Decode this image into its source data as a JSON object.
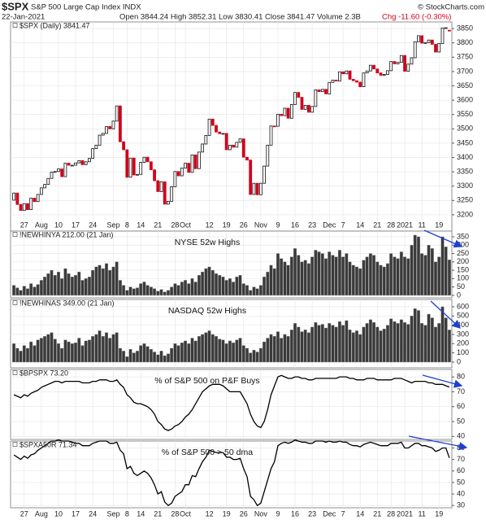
{
  "header": {
    "symbol": "$SPX",
    "name": "S&P 500 Large Cap Index INDX",
    "date": "22-Jan-2021",
    "quote": "Open 3844.24 High 3852.31 Low 3830.41 Close 3841.47 Volume 2.3B",
    "change": "Chg -11.60 (-0.30%)",
    "credit": "© StockCharts.com"
  },
  "chart_data": [
    {
      "type": "candlestick",
      "legend": "$SPX (Daily) 3841.47",
      "up_color": "#111111",
      "down_color": "#d0021b",
      "grid": true,
      "x": [
        "Jul 22",
        "Jul 23",
        "Jul 24",
        "Jul 27",
        "Jul 28",
        "Jul 29",
        "Jul 30",
        "Jul 31",
        "Aug 3",
        "Aug 4",
        "Aug 5",
        "Aug 6",
        "Aug 7",
        "Aug 10",
        "Aug 11",
        "Aug 12",
        "Aug 13",
        "Aug 14",
        "Aug 17",
        "Aug 18",
        "Aug 19",
        "Aug 20",
        "Aug 21",
        "Aug 24",
        "Aug 25",
        "Aug 26",
        "Aug 27",
        "Aug 28",
        "Aug 31",
        "Sep 1",
        "Sep 2",
        "Sep 3",
        "Sep 4",
        "Sep 8",
        "Sep 9",
        "Sep 10",
        "Sep 11",
        "Sep 14",
        "Sep 15",
        "Sep 16",
        "Sep 17",
        "Sep 18",
        "Sep 21",
        "Sep 22",
        "Sep 23",
        "Sep 24",
        "Sep 25",
        "Sep 28",
        "Sep 29",
        "Sep 30",
        "Oct 1",
        "Oct 2",
        "Oct 5",
        "Oct 6",
        "Oct 7",
        "Oct 8",
        "Oct 9",
        "Oct 12",
        "Oct 13",
        "Oct 14",
        "Oct 15",
        "Oct 16",
        "Oct 19",
        "Oct 20",
        "Oct 21",
        "Oct 22",
        "Oct 23",
        "Oct 26",
        "Oct 27",
        "Oct 28",
        "Oct 29",
        "Oct 30",
        "Nov 2",
        "Nov 3",
        "Nov 4",
        "Nov 5",
        "Nov 6",
        "Nov 9",
        "Nov 10",
        "Nov 11",
        "Nov 12",
        "Nov 13",
        "Nov 16",
        "Nov 17",
        "Nov 18",
        "Nov 19",
        "Nov 20",
        "Nov 23",
        "Nov 24",
        "Nov 25",
        "Nov 27",
        "Nov 30",
        "Dec 1",
        "Dec 2",
        "Dec 3",
        "Dec 4",
        "Dec 7",
        "Dec 8",
        "Dec 9",
        "Dec 10",
        "Dec 11",
        "Dec 14",
        "Dec 15",
        "Dec 16",
        "Dec 17",
        "Dec 18",
        "Dec 21",
        "Dec 22",
        "Dec 23",
        "Dec 24",
        "Dec 28",
        "Dec 29",
        "Dec 30",
        "Dec 31",
        "Jan 4",
        "Jan 5",
        "Jan 6",
        "Jan 7",
        "Jan 8",
        "Jan 11",
        "Jan 12",
        "Jan 13",
        "Jan 14",
        "Jan 15",
        "Jan 19",
        "Jan 20",
        "Jan 21",
        "Jan 22"
      ],
      "open": [
        3251,
        3276,
        3236,
        3215,
        3239,
        3218,
        3258,
        3246,
        3271,
        3294,
        3306,
        3327,
        3349,
        3351,
        3360,
        3333,
        3380,
        3373,
        3373,
        3381,
        3389,
        3375,
        3385,
        3397,
        3431,
        3443,
        3478,
        3484,
        3508,
        3500,
        3527,
        3580,
        3455,
        3427,
        3331,
        3398,
        3339,
        3341,
        3383,
        3401,
        3385,
        3357,
        3319,
        3281,
        3315,
        3237,
        3247,
        3298,
        3351,
        3336,
        3363,
        3380,
        3348,
        3409,
        3361,
        3419,
        3447,
        3477,
        3534,
        3512,
        3489,
        3483,
        3484,
        3427,
        3443,
        3436,
        3453,
        3465,
        3401,
        3391,
        3271,
        3310,
        3270,
        3310,
        3370,
        3443,
        3510,
        3509,
        3551,
        3546,
        3572,
        3537,
        3585,
        3627,
        3610,
        3568,
        3582,
        3558,
        3578,
        3636,
        3630,
        3638,
        3622,
        3662,
        3670,
        3667,
        3699,
        3692,
        3702,
        3673,
        3668,
        3663,
        3647,
        3695,
        3702,
        3722,
        3709,
        3695,
        3687,
        3690,
        3703,
        3735,
        3727,
        3732,
        3756,
        3701,
        3726,
        3748,
        3804,
        3825,
        3799,
        3801,
        3810,
        3795,
        3768,
        3798,
        3852,
        3844.24
      ],
      "close": [
        3276,
        3236,
        3215,
        3239,
        3218,
        3258,
        3246,
        3271,
        3294,
        3306,
        3327,
        3349,
        3351,
        3360,
        3333,
        3380,
        3373,
        3373,
        3381,
        3389,
        3375,
        3385,
        3397,
        3431,
        3443,
        3478,
        3484,
        3508,
        3500,
        3527,
        3580,
        3455,
        3427,
        3331,
        3398,
        3339,
        3341,
        3383,
        3401,
        3385,
        3357,
        3319,
        3281,
        3315,
        3237,
        3247,
        3298,
        3351,
        3336,
        3363,
        3380,
        3348,
        3409,
        3361,
        3419,
        3447,
        3477,
        3534,
        3512,
        3489,
        3483,
        3484,
        3427,
        3443,
        3436,
        3453,
        3465,
        3401,
        3391,
        3271,
        3310,
        3270,
        3310,
        3370,
        3443,
        3510,
        3509,
        3551,
        3546,
        3572,
        3537,
        3585,
        3627,
        3610,
        3568,
        3582,
        3558,
        3578,
        3636,
        3630,
        3638,
        3622,
        3662,
        3670,
        3667,
        3699,
        3692,
        3702,
        3673,
        3668,
        3663,
        3647,
        3695,
        3702,
        3722,
        3709,
        3695,
        3687,
        3690,
        3703,
        3735,
        3727,
        3732,
        3756,
        3701,
        3726,
        3748,
        3804,
        3825,
        3799,
        3801,
        3810,
        3795,
        3768,
        3798,
        3852,
        3853,
        3841.47
      ],
      "ylim": [
        3143,
        3873
      ],
      "yticks": [
        3200,
        3250,
        3300,
        3350,
        3400,
        3450,
        3500,
        3550,
        3600,
        3650,
        3700,
        3750,
        3800,
        3850
      ],
      "xticks": [
        {
          "value": "Jul 27",
          "label": "27"
        },
        {
          "value": "Aug 3",
          "label": "Aug"
        },
        {
          "value": "Aug 10",
          "label": "10"
        },
        {
          "value": "Aug 17",
          "label": "17"
        },
        {
          "value": "Aug 24",
          "label": "24"
        },
        {
          "value": "Sep 1",
          "label": "Sep"
        },
        {
          "value": "Sep 8",
          "label": "8"
        },
        {
          "value": "Sep 14",
          "label": "14"
        },
        {
          "value": "Sep 21",
          "label": "21"
        },
        {
          "value": "Sep 28",
          "label": "28"
        },
        {
          "value": "Oct 1",
          "label": "Oct"
        },
        {
          "value": "Oct 12",
          "label": "12"
        },
        {
          "value": "Oct 19",
          "label": "19"
        },
        {
          "value": "Oct 26",
          "label": "26"
        },
        {
          "value": "Nov 2",
          "label": "Nov"
        },
        {
          "value": "Nov 9",
          "label": "9"
        },
        {
          "value": "Nov 16",
          "label": "16"
        },
        {
          "value": "Nov 23",
          "label": "23"
        },
        {
          "value": "Dec 1",
          "label": "Dec"
        },
        {
          "value": "Dec 7",
          "label": "7"
        },
        {
          "value": "Dec 14",
          "label": "14"
        },
        {
          "value": "Dec 21",
          "label": "21"
        },
        {
          "value": "Dec 28",
          "label": "28"
        },
        {
          "value": "Jan 4",
          "label": "2021"
        },
        {
          "value": "Jan 11",
          "label": "11"
        },
        {
          "value": "Jan 19",
          "label": "19"
        }
      ]
    },
    {
      "type": "bar",
      "legend": "!NEWHINYA 212.00 (21 Jan)",
      "title": "NYSE 52w Highs",
      "color": "#3a3a3a",
      "grid": true,
      "ylim": [
        -15,
        384
      ],
      "yticks": [
        0,
        50,
        100,
        150,
        200,
        250,
        300,
        350
      ],
      "values": [
        60,
        45,
        30,
        55,
        40,
        70,
        50,
        65,
        90,
        110,
        130,
        150,
        120,
        140,
        100,
        160,
        130,
        110,
        120,
        140,
        90,
        100,
        110,
        150,
        170,
        180,
        160,
        190,
        150,
        170,
        200,
        90,
        60,
        30,
        50,
        40,
        45,
        70,
        80,
        60,
        50,
        40,
        25,
        35,
        20,
        30,
        50,
        70,
        60,
        80,
        90,
        70,
        100,
        80,
        120,
        140,
        160,
        170,
        150,
        130,
        120,
        110,
        90,
        100,
        80,
        110,
        120,
        70,
        60,
        30,
        50,
        40,
        60,
        110,
        140,
        180,
        160,
        250,
        220,
        200,
        180,
        230,
        280,
        240,
        200,
        210,
        190,
        230,
        270,
        260,
        250,
        220,
        260,
        240,
        230,
        270,
        230,
        250,
        200,
        180,
        170,
        160,
        210,
        230,
        250,
        240,
        200,
        180,
        170,
        190,
        250,
        230,
        220,
        260,
        230,
        220,
        300,
        360,
        350,
        250,
        240,
        300,
        280,
        200,
        230,
        350,
        290,
        212
      ]
    },
    {
      "type": "bar",
      "legend": "!NEWHINAS 349.00 (21 Jan)",
      "title": "NASDAQ 52w Highs",
      "color": "#3a3a3a",
      "grid": true,
      "ylim": [
        -62,
        679
      ],
      "yticks": [
        0,
        100,
        200,
        300,
        400,
        500,
        600
      ],
      "values": [
        200,
        150,
        120,
        180,
        150,
        220,
        180,
        240,
        260,
        280,
        300,
        320,
        250,
        200,
        150,
        240,
        220,
        200,
        210,
        260,
        180,
        230,
        240,
        280,
        300,
        340,
        280,
        320,
        260,
        300,
        320,
        150,
        120,
        60,
        140,
        100,
        120,
        180,
        200,
        170,
        140,
        110,
        80,
        120,
        70,
        90,
        150,
        200,
        180,
        210,
        230,
        200,
        260,
        230,
        280,
        300,
        320,
        340,
        300,
        280,
        250,
        240,
        200,
        230,
        210,
        240,
        260,
        180,
        150,
        100,
        130,
        110,
        150,
        220,
        260,
        300,
        280,
        330,
        260,
        300,
        280,
        350,
        420,
        380,
        330,
        350,
        320,
        380,
        430,
        400,
        410,
        370,
        420,
        400,
        380,
        440,
        400,
        450,
        350,
        320,
        340,
        300,
        380,
        420,
        460,
        430,
        380,
        340,
        360,
        400,
        470,
        440,
        420,
        460,
        430,
        410,
        500,
        580,
        560,
        420,
        400,
        520,
        480,
        380,
        420,
        600,
        480,
        349
      ]
    },
    {
      "type": "line",
      "legend": "$BPSPX 73.20",
      "title": "% of S&P 500 on P&F Buys",
      "color": "#000000",
      "grid": true,
      "ylim": [
        38,
        85
      ],
      "yticks": [
        40,
        50,
        60,
        70,
        80
      ],
      "values": [
        68,
        67,
        66,
        68,
        67,
        69,
        70,
        71,
        73,
        74,
        75,
        76,
        77,
        77,
        76,
        77,
        77,
        77,
        77,
        77,
        76,
        76,
        76,
        77,
        77,
        78,
        78,
        78,
        77,
        77,
        78,
        75,
        73,
        68,
        66,
        63,
        62,
        62,
        61,
        60,
        58,
        55,
        50,
        48,
        45,
        44,
        45,
        47,
        48,
        50,
        53,
        55,
        58,
        62,
        66,
        70,
        72,
        74,
        75,
        75,
        75,
        74,
        72,
        70,
        70,
        70,
        70,
        66,
        62,
        55,
        50,
        47,
        46,
        50,
        58,
        68,
        74,
        80,
        81,
        80,
        79,
        79,
        80,
        80,
        79,
        79,
        78,
        78,
        79,
        79,
        79,
        79,
        79,
        79,
        79,
        80,
        80,
        80,
        79,
        79,
        78,
        78,
        78,
        79,
        79,
        79,
        78,
        78,
        78,
        78,
        78,
        79,
        79,
        79,
        78,
        77,
        76,
        77,
        77,
        77,
        77,
        76,
        76,
        75,
        75,
        75,
        74,
        73.2
      ]
    },
    {
      "type": "line",
      "legend": "$SPXA50R 71.34",
      "title": "% of S&P 500 > 50 dma",
      "color": "#000000",
      "grid": true,
      "ylim": [
        28,
        86
      ],
      "yticks": [
        30,
        40,
        50,
        60,
        70,
        80
      ],
      "values": [
        74,
        72,
        70,
        73,
        71,
        74,
        75,
        78,
        80,
        82,
        84,
        86,
        86,
        87,
        86,
        86,
        86,
        85,
        84,
        84,
        82,
        82,
        82,
        84,
        85,
        86,
        86,
        86,
        84,
        84,
        85,
        78,
        75,
        62,
        64,
        58,
        56,
        58,
        60,
        58,
        54,
        48,
        40,
        42,
        33,
        30,
        32,
        38,
        40,
        42,
        48,
        48,
        56,
        55,
        62,
        68,
        72,
        78,
        77,
        76,
        76,
        76,
        72,
        72,
        70,
        70,
        71,
        62,
        55,
        38,
        35,
        30,
        32,
        42,
        52,
        62,
        68,
        82,
        84,
        85,
        84,
        85,
        87,
        86,
        85,
        85,
        84,
        84,
        86,
        86,
        86,
        85,
        86,
        85,
        85,
        86,
        85,
        85,
        83,
        82,
        82,
        81,
        83,
        84,
        85,
        84,
        83,
        82,
        82,
        82,
        84,
        84,
        84,
        85,
        80,
        80,
        82,
        84,
        84,
        82,
        82,
        81,
        80,
        77,
        78,
        80,
        80,
        71.34
      ]
    }
  ]
}
